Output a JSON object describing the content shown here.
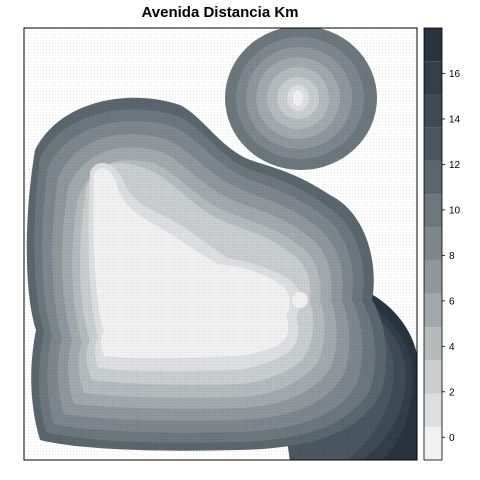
{
  "chart_data": {
    "type": "heatmap",
    "title": "Avenida Distancia Km",
    "xlabel": "",
    "ylabel": "",
    "legend": {
      "position": "right",
      "range": [
        -1,
        18
      ],
      "break_step": 1,
      "ticks": [
        0,
        2,
        4,
        6,
        8,
        10,
        12,
        14,
        16
      ],
      "tick_labels": [
        "0",
        "2",
        "4",
        "6",
        "8",
        "10",
        "12",
        "14",
        "16"
      ],
      "colors": [
        "#f0f1f0",
        "#dcdfdf",
        "#c9cdce",
        "#b5bbbd",
        "#a2a9ac",
        "#8f979c",
        "#7c868c",
        "#6b767d",
        "#5a666e",
        "#4b5760",
        "#3e4a54",
        "#323e49",
        "#283440"
      ]
    },
    "grid": false,
    "description_levels": "Distance bands grow from 0 km at the central cluster to about 16-17 km at the far lower-right corner; an isolated northeast cluster has its own 0-1 km core."
  }
}
